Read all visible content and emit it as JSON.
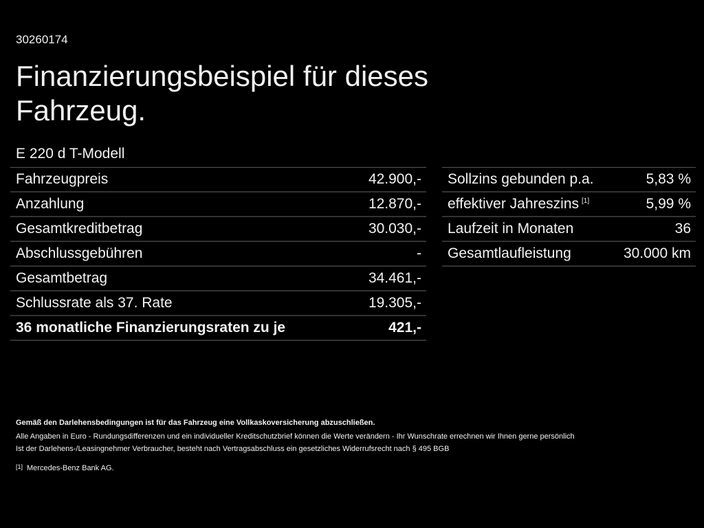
{
  "header": {
    "id": "30260174",
    "title": "Finanzierungsbeispiel für dieses Fahrzeug.",
    "model": "E 220 d T-Modell"
  },
  "left_table": {
    "rows": [
      [
        "Fahrzeugpreis",
        "42.900,-"
      ],
      [
        "Anzahlung",
        "12.870,-"
      ],
      [
        "Gesamtkreditbetrag",
        "30.030,-"
      ],
      [
        "Abschlussgebühren",
        "-"
      ],
      [
        "Gesamtbetrag",
        "34.461,-"
      ],
      [
        "Schlussrate als 37. Rate",
        "19.305,-"
      ],
      [
        "36 monatliche Finanzierungsraten zu je",
        "421,-"
      ]
    ]
  },
  "right_table": {
    "rows": [
      {
        "label": "Sollzins gebunden p.a.",
        "value": "5,83 %"
      },
      {
        "label": "effektiver Jahreszins",
        "marker": "[1]",
        "value": "5,99 %"
      },
      {
        "label": "Laufzeit in Monaten",
        "value": "36"
      },
      {
        "label": "Gesamtlaufleistung",
        "value": "30.000 km"
      }
    ]
  },
  "notes": {
    "bold": "Gemäß den Darlehensbedingungen ist für das Fahrzeug eine Vollkaskoversicherung abzuschließen.",
    "lines": [
      "Alle Angaben in Euro - Rundungsdifferenzen und ein individueller Kreditschutzbrief können die Werte verändern - Ihr Wunschrate errechnen wir Ihnen gerne persönlich",
      "Ist der Darlehens-/Leasingnehmer Verbraucher, besteht nach Vertragsabschluss ein gesetzliches Widerrufsrecht nach § 495 BGB"
    ],
    "footnote": {
      "marker": "[1]",
      "text": "Mercedes-Benz Bank AG."
    }
  }
}
